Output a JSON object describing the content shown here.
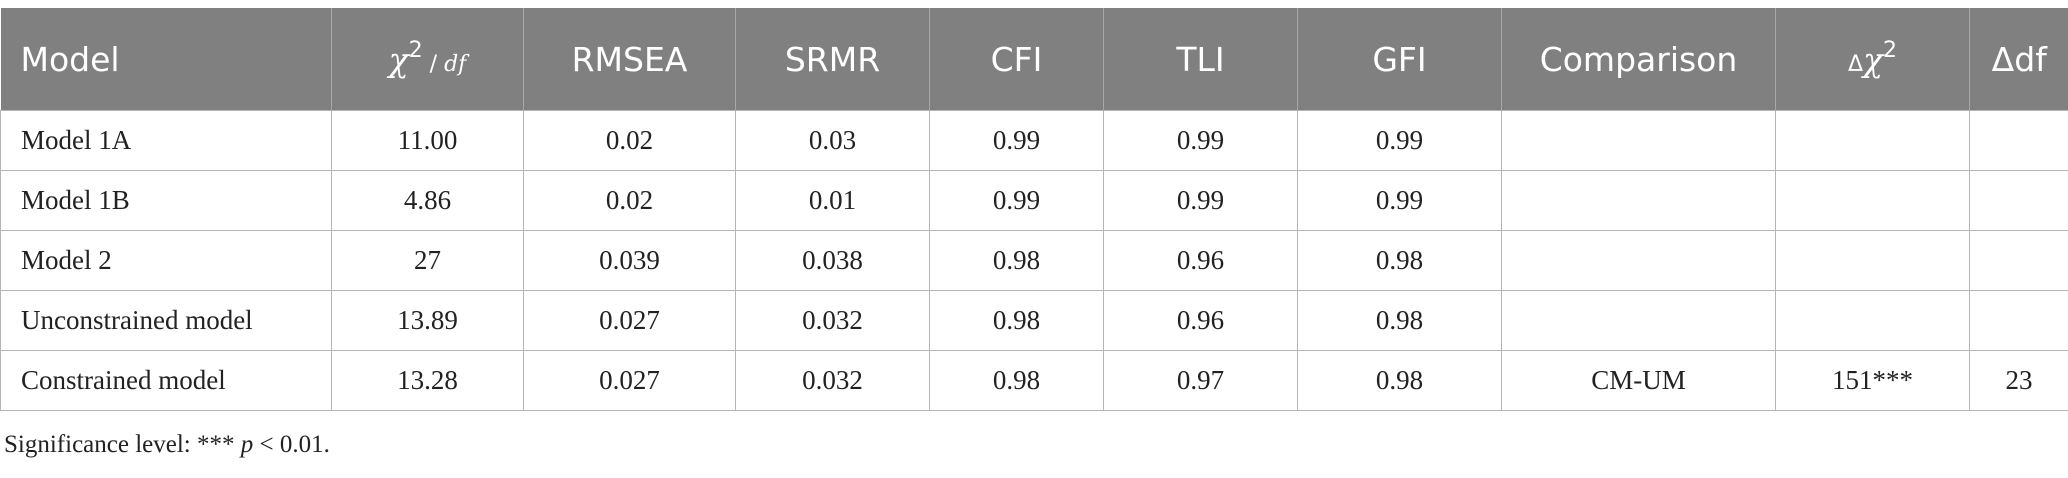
{
  "table": {
    "headers": [
      {
        "key": "model",
        "text": "Model"
      },
      {
        "key": "chi_df",
        "chi": "χ",
        "sup": "2",
        "rest": " / ",
        "df": "df"
      },
      {
        "key": "rmsea",
        "text": "RMSEA"
      },
      {
        "key": "srmr",
        "text": "SRMR"
      },
      {
        "key": "cfi",
        "text": "CFI"
      },
      {
        "key": "tli",
        "text": "TLI"
      },
      {
        "key": "gfi",
        "text": "GFI"
      },
      {
        "key": "comparison",
        "text": "Comparison"
      },
      {
        "key": "delta_chi",
        "delta": "Δ",
        "chi": "χ",
        "sup": "2"
      },
      {
        "key": "delta_df",
        "text": "Δdf"
      }
    ],
    "rows": [
      [
        "Model 1A",
        "11.00",
        "0.02",
        "0.03",
        "0.99",
        "0.99",
        "0.99",
        "",
        "",
        ""
      ],
      [
        "Model 1B",
        "4.86",
        "0.02",
        "0.01",
        "0.99",
        "0.99",
        "0.99",
        "",
        "",
        ""
      ],
      [
        "Model 2",
        "27",
        "0.039",
        "0.038",
        "0.98",
        "0.96",
        "0.98",
        "",
        "",
        ""
      ],
      [
        "Unconstrained model",
        "13.89",
        "0.027",
        "0.032",
        "0.98",
        "0.96",
        "0.98",
        "",
        "",
        ""
      ],
      [
        "Constrained model",
        "13.28",
        "0.027",
        "0.032",
        "0.98",
        "0.97",
        "0.98",
        "CM-UM",
        "151***",
        "23"
      ]
    ]
  },
  "note": {
    "prefix": "Significance level: *** ",
    "p": "p",
    "suffix": " < 0.01."
  },
  "colors": {
    "header_bg": "#808080",
    "header_text": "#ffffff",
    "border": "#b5b5b5",
    "text": "#222222"
  }
}
